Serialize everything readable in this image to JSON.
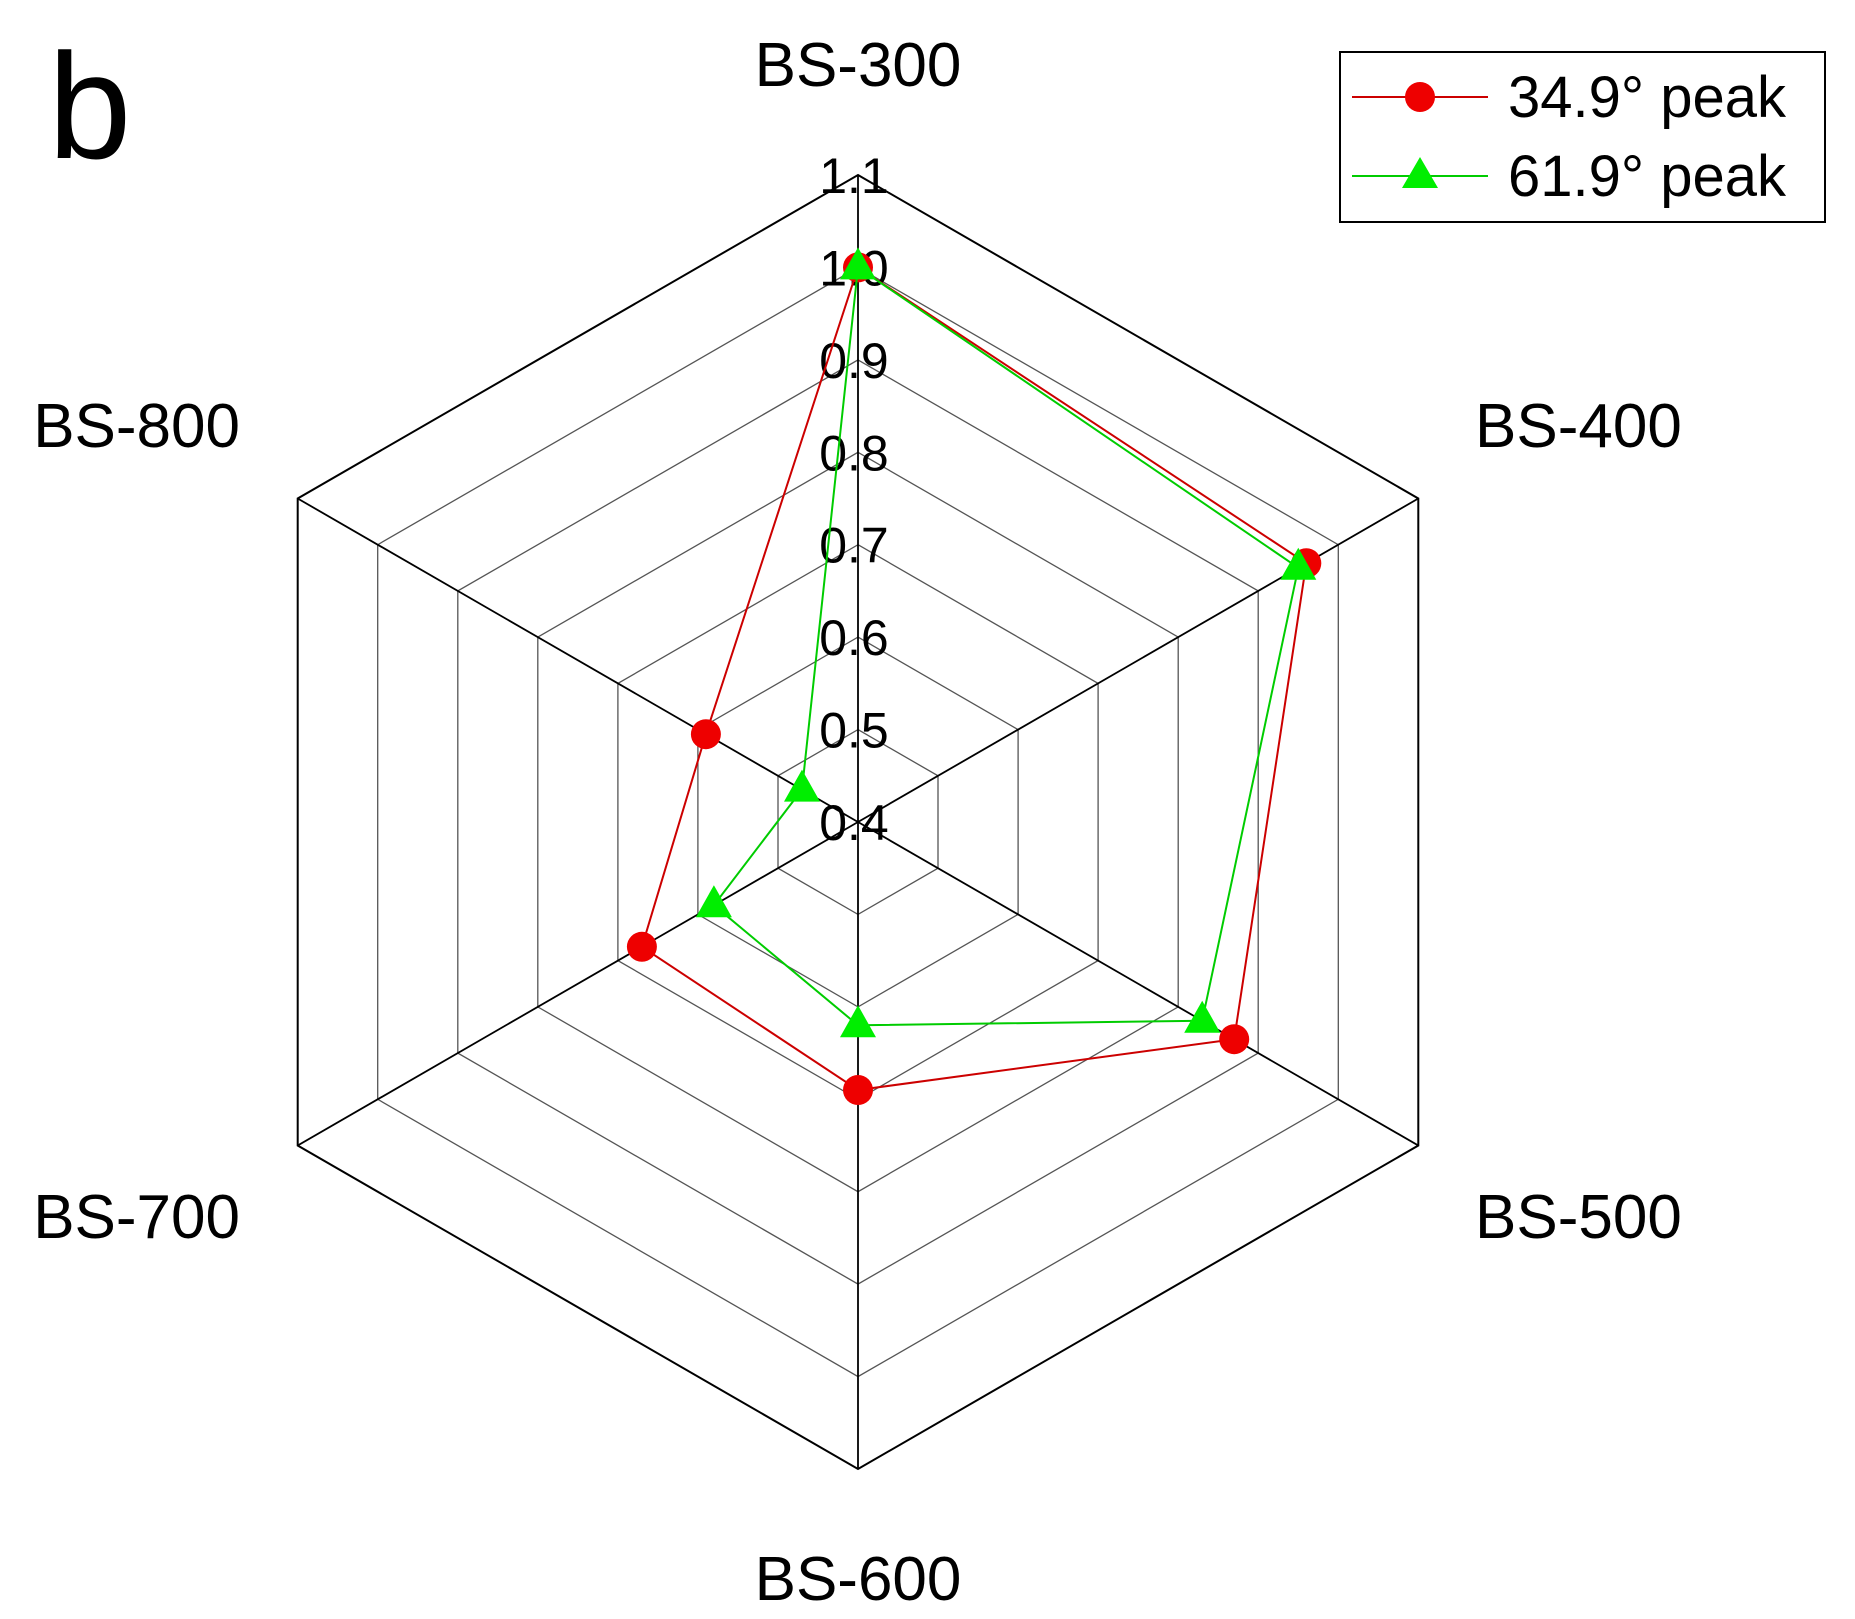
{
  "panel_label": "b",
  "chart_data": {
    "type": "radar",
    "categories": [
      "BS-300",
      "BS-400",
      "BS-500",
      "BS-600",
      "BS-700",
      "BS-800"
    ],
    "rlim": [
      0.4,
      1.1
    ],
    "ticks": [
      {
        "value": 0.4,
        "label": "0.4"
      },
      {
        "value": 0.5,
        "label": "0.5"
      },
      {
        "value": 0.6,
        "label": "0.6"
      },
      {
        "value": 0.7,
        "label": "0.7"
      },
      {
        "value": 0.8,
        "label": "0.8"
      },
      {
        "value": 0.9,
        "label": "0.9"
      },
      {
        "value": 1.0,
        "label": "1.0"
      },
      {
        "value": 1.1,
        "label": "1.1"
      }
    ],
    "grid": true,
    "legend_position": "top-right",
    "series": [
      {
        "name": "34.9° peak",
        "color": "#cc0000",
        "marker_color": "#ee0000",
        "marker": "circle",
        "values": [
          1.0,
          0.96,
          0.87,
          0.69,
          0.67,
          0.59
        ]
      },
      {
        "name": "61.9° peak",
        "color": "#00cc00",
        "marker_color": "#00ee00",
        "marker": "triangle",
        "values": [
          1.0,
          0.95,
          0.83,
          0.62,
          0.58,
          0.47
        ]
      }
    ]
  }
}
